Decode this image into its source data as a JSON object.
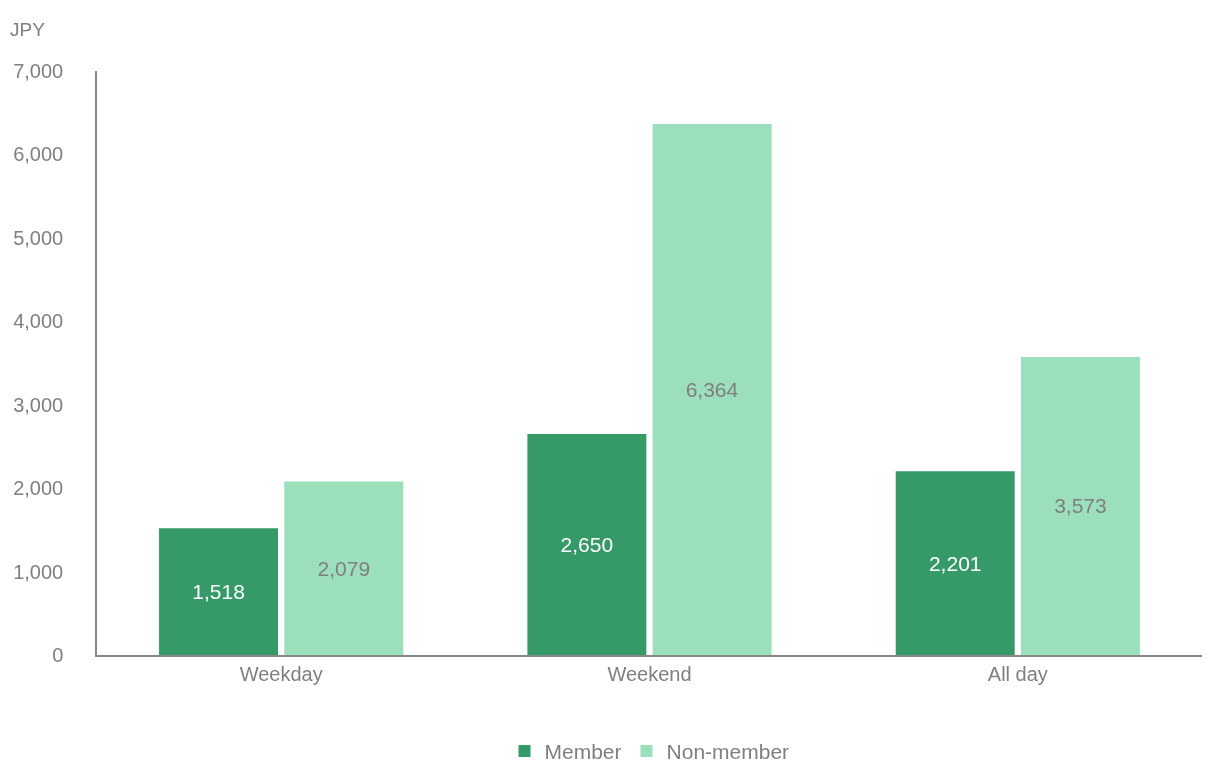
{
  "chart_data": {
    "type": "bar",
    "ylabel": "JPY",
    "categories": [
      "Weekday",
      "Weekend",
      "All day"
    ],
    "series": [
      {
        "name": "Member",
        "color": "#359a68",
        "values": [
          1518,
          2650,
          2201
        ],
        "value_labels": [
          "1,518",
          "2,650",
          "2,201"
        ]
      },
      {
        "name": "Non-member",
        "color": "#9bdfbc",
        "values": [
          2079,
          6364,
          3573
        ],
        "value_labels": [
          "2,079",
          "6,364",
          "3,573"
        ]
      }
    ],
    "ylim": [
      0,
      7000
    ],
    "yticks": [
      {
        "value": 0,
        "label": "0"
      },
      {
        "value": 1000,
        "label": "1,000"
      },
      {
        "value": 2000,
        "label": "2,000"
      },
      {
        "value": 3000,
        "label": "3,000"
      },
      {
        "value": 4000,
        "label": "4,000"
      },
      {
        "value": 5000,
        "label": "5,000"
      },
      {
        "value": 6000,
        "label": "6,000"
      },
      {
        "value": 7000,
        "label": "7,000"
      }
    ],
    "legend": "bottom"
  }
}
